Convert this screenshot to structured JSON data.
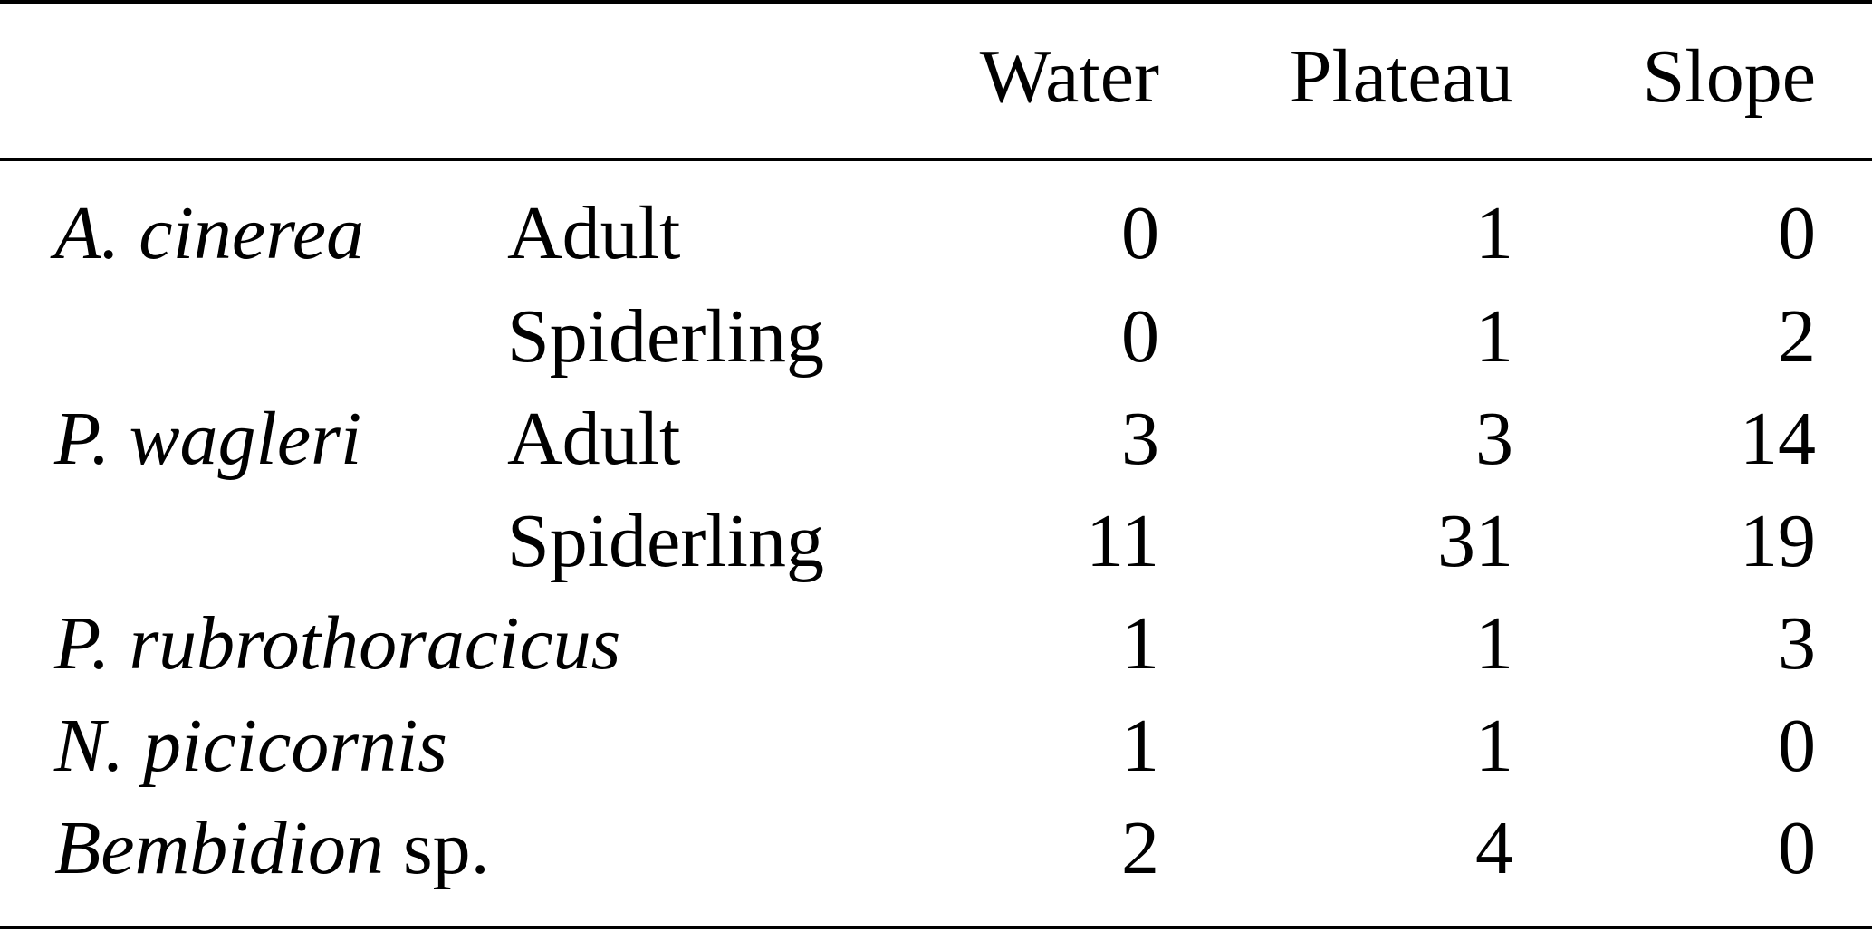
{
  "table": {
    "columns": [
      "Water",
      "Plateau",
      "Slope"
    ],
    "rows": [
      {
        "species": "A. cinerea",
        "stage": "Adult",
        "values": [
          "0",
          "1",
          "0"
        ]
      },
      {
        "species": "",
        "stage": "Spiderling",
        "values": [
          "0",
          "1",
          "2"
        ]
      },
      {
        "species": "P. wagleri",
        "stage": "Adult",
        "values": [
          "3",
          "3",
          "14"
        ]
      },
      {
        "species": "",
        "stage": "Spiderling",
        "values": [
          "11",
          "31",
          "19"
        ]
      },
      {
        "species": "P. rubrothoracicus",
        "stage": "",
        "values": [
          "1",
          "1",
          "3"
        ]
      },
      {
        "species": "N. picicornis",
        "stage": "",
        "values": [
          "1",
          "1",
          "0"
        ]
      },
      {
        "species": "Bembidion",
        "species_suffix": " sp.",
        "stage": "",
        "values": [
          "2",
          "4",
          "0"
        ]
      }
    ]
  }
}
